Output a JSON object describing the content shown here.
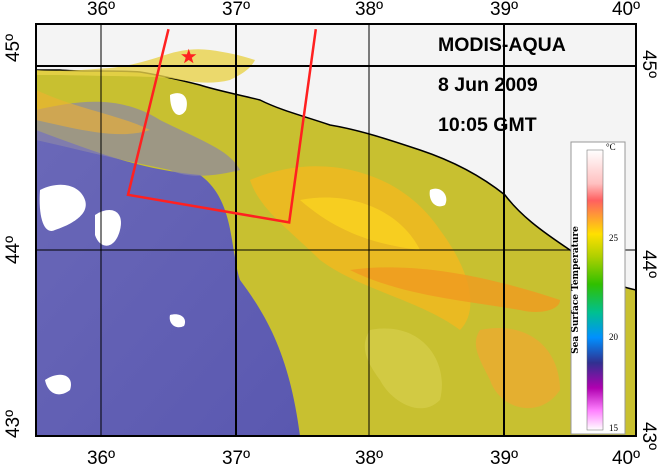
{
  "annotations": {
    "sensor": "MODIS-AQUA",
    "date": "8 Jun 2009",
    "time": "10:05 GMT"
  },
  "axes": {
    "longitude_labels": [
      "36º",
      "37º",
      "38º",
      "39º",
      "40º"
    ],
    "latitude_labels": [
      "45º",
      "44º",
      "43º"
    ],
    "lon_range": [
      35.5,
      40.0
    ],
    "lat_range": [
      42.9,
      45.2
    ],
    "grid": true
  },
  "colorbar": {
    "title": "Sea Surface Temperature",
    "unit": "°C",
    "tick_labels": [
      "25",
      "20",
      "15"
    ],
    "range": [
      15,
      28
    ],
    "colors": [
      "#ffffff",
      "#ff80ff",
      "#b000b0",
      "#303090",
      "#00a0ff",
      "#00c080",
      "#30c000",
      "#b0d000",
      "#ffe000",
      "#ffa030",
      "#ff6060",
      "#ffc0c0",
      "#ffffff"
    ]
  },
  "study_polygon": {
    "color": "#ff2020",
    "vertices_lonlat": [
      [
        36.5,
        45.2
      ],
      [
        36.2,
        44.3
      ],
      [
        37.4,
        44.15
      ],
      [
        37.6,
        45.2
      ]
    ]
  },
  "station_marker": {
    "symbol": "star",
    "color": "#ff2020",
    "lonlat": [
      36.65,
      45.05
    ]
  }
}
